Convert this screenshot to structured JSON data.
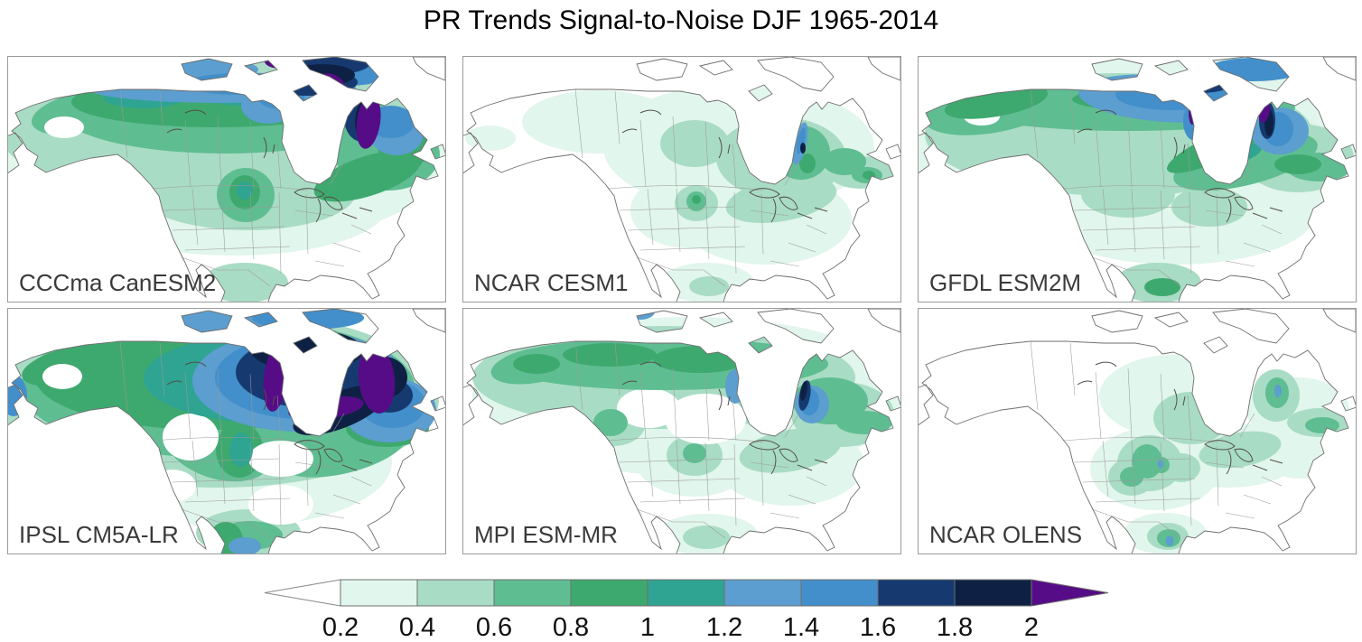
{
  "title": "PR Trends Signal-to-Noise DJF 1965-2014",
  "panels": [
    {
      "label": "CCCma CanESM2"
    },
    {
      "label": "NCAR CESM1"
    },
    {
      "label": "GFDL ESM2M"
    },
    {
      "label": "IPSL CM5A-LR"
    },
    {
      "label": "MPI ESM-MR"
    },
    {
      "label": "NCAR OLENS"
    }
  ],
  "colorbar": {
    "orientation": "horizontal",
    "extend": "both",
    "tick_labels": [
      "0.2",
      "0.4",
      "0.6",
      "0.8",
      "1",
      "1.2",
      "1.4",
      "1.6",
      "1.8",
      "2"
    ],
    "levels": [
      0.2,
      0.4,
      0.6,
      0.8,
      1.0,
      1.2,
      1.4,
      1.6,
      1.8,
      2.0
    ],
    "seg_colors": [
      "#e1f6ec",
      "#a9dcc4",
      "#5fbd92",
      "#3ea96e",
      "#2fa492",
      "#5b9ecf",
      "#428fcb",
      "#163a70",
      "#0e2144"
    ],
    "under_color": "#ffffff",
    "over_color": "#560c87"
  },
  "chart_data": {
    "type": "heatmap",
    "subtype": "filled-contour map grid (2 rows x 3 columns)",
    "title": "PR Trends Signal-to-Noise DJF 1965-2014",
    "variable": "Precipitation trend signal-to-noise ratio",
    "season": "DJF",
    "period": "1965-2014",
    "region": "North America (Lambert conformal view: Alaska, Canada, Hudson Bay, USA, Mexico)",
    "grid": {
      "rows": 2,
      "cols": 3
    },
    "colorbar_levels": [
      0.2,
      0.4,
      0.6,
      0.8,
      1.0,
      1.2,
      1.4,
      1.6,
      1.8,
      2.0
    ],
    "colorbar_colors": [
      "#e1f6ec",
      "#a9dcc4",
      "#5fbd92",
      "#3ea96e",
      "#2fa492",
      "#5b9ecf",
      "#428fcb",
      "#163a70",
      "#0e2144"
    ],
    "over_2_color": "#560c87",
    "under_0p2_color": "#ffffff",
    "panels": [
      {
        "label": "CCCma CanESM2",
        "pattern": "High S/N (1.4-2 navy, >2 purple) just east and north of Hudson Bay and along Arctic islands; broad 0.4-1 greens across Canada and Alaska; 0.6-1.2 spot in central US plains; <0.4 over southern and southeastern US."
      },
      {
        "label": "NCAR CESM1",
        "pattern": "Mostly <0.4; 0.4-0.8 southeast of Hudson Bay, over Quebec, Great Lakes and Maritimes; narrow 1.2-1.6 blue streak with tiny 1.8-2 dot on SE Hudson Bay shore; small 0.6-1 blob in central US; pale mint over Mexico."
      },
      {
        "label": "GFDL ESM2M",
        "pattern": "0.6-1 greens over Alaska and a band across northern Canada; broad 1.2-1.6 blue band NW of Hudson Bay; 1.6-2 navy and thin >2 purple slivers flanking Hudson Bay; 0.2-0.6 over most of US; dark navy patch at far NW edge."
      },
      {
        "label": "IPSL CM5A-LR",
        "pattern": "Strongest signal: >2 purple ring hugging Hudson Bay, surrounded by 1.8-2 and 1.6-1.8 navy, wide 1.2-1.6 blue and 1.0-1.2 teal bands; 0.4-1 greens over most of Canada, Alaska and the Rockies; 0.2-0.6 central US with white pockets; greens and a blue spot over Mexico."
      },
      {
        "label": "MPI ESM-MR",
        "pattern": "0.6-1 green band across Alaska and northern Canada; small 1.2-2 blue/navy patch at SE Hudson Bay shore; 0.4-0.8 over Quebec, Great Lakes and a central-US blob; <0.4 over most of US; mint patches in Mexico."
      },
      {
        "label": "NCAR OLENS",
        "pattern": "Mostly <0.4; 0.4-0.8 patches east of Hudson Bay, over Quebec/Maritimes, around the Great Lakes, and clustered over the Rockies/central-southern US; isolated 1.2-1.4 blue dots east of Hudson Bay, in Colorado and in central Mexico."
      }
    ]
  }
}
